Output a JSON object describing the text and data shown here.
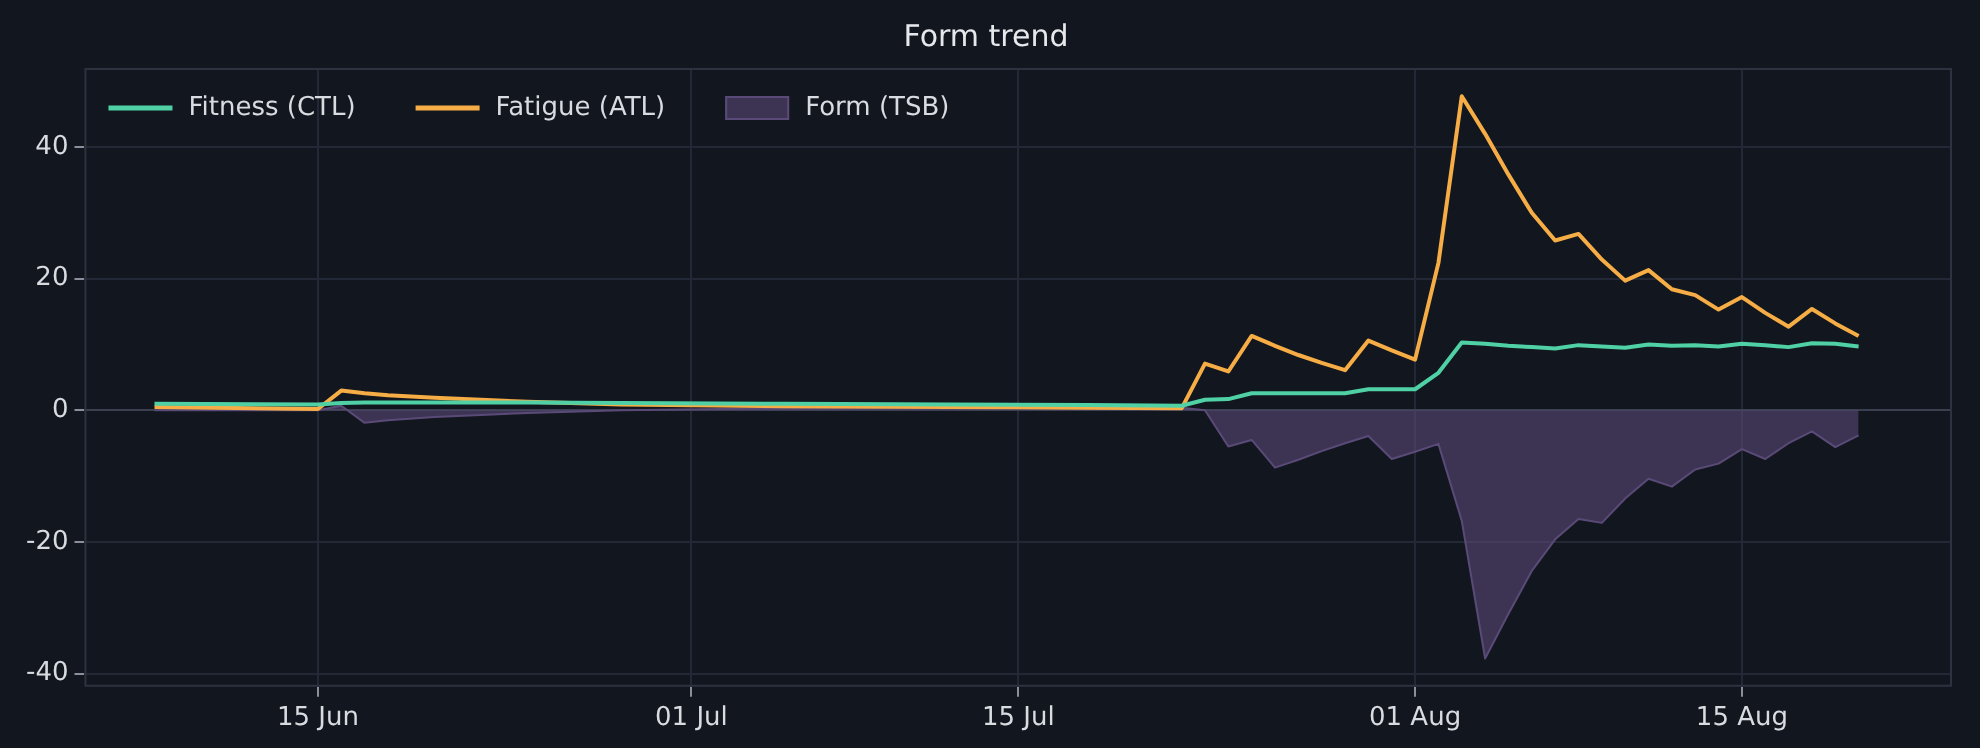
{
  "chart_data": {
    "type": "line",
    "title": "Form trend",
    "x": [
      "--06-08",
      "--06-15",
      "--06-16",
      "--06-17",
      "--06-18",
      "--06-20",
      "--06-24",
      "--06-28",
      "--07-05",
      "--07-12",
      "--07-18",
      "--07-22",
      "--07-23",
      "--07-24",
      "--07-25",
      "--07-26",
      "--07-27",
      "--07-28",
      "--07-29",
      "--07-30",
      "--07-31",
      "--08-01",
      "--08-02",
      "--08-03",
      "--08-04",
      "--08-05",
      "--08-06",
      "--08-07",
      "--08-08",
      "--08-09",
      "--08-10",
      "--08-11",
      "--08-12",
      "--08-13",
      "--08-14",
      "--08-15",
      "--08-16",
      "--08-17",
      "--08-18",
      "--08-19",
      "--08-20"
    ],
    "series": [
      {
        "name": "Fitness (CTL)",
        "type": "line",
        "color": "#4fd1a5",
        "values": [
          1.0,
          0.9,
          1.1,
          1.2,
          1.2,
          1.2,
          1.2,
          1.1,
          1.0,
          0.9,
          0.8,
          0.7,
          1.6,
          1.7,
          2.6,
          2.6,
          2.6,
          2.6,
          2.6,
          3.2,
          3.2,
          3.2,
          5.7,
          10.3,
          10.1,
          9.8,
          9.6,
          9.4,
          9.9,
          9.7,
          9.5,
          10.0,
          9.8,
          9.9,
          9.7,
          10.1,
          9.9,
          9.6,
          10.2,
          10.1,
          9.7
        ]
      },
      {
        "name": "Fatigue (ATL)",
        "type": "line",
        "color": "#f6ad45",
        "values": [
          0.5,
          0.2,
          3.0,
          2.6,
          2.3,
          1.9,
          1.3,
          0.9,
          0.6,
          0.5,
          0.4,
          0.3,
          7.1,
          5.9,
          11.3,
          9.8,
          8.4,
          7.2,
          6.1,
          10.6,
          9.1,
          7.7,
          22.4,
          47.7,
          42.0,
          35.8,
          30.0,
          25.8,
          26.8,
          22.9,
          19.7,
          21.3,
          18.4,
          17.5,
          15.3,
          17.2,
          14.8,
          12.7,
          15.4,
          13.2,
          11.3
        ]
      },
      {
        "name": "Form (TSB)",
        "type": "area",
        "color": "#5a4a78",
        "values": [
          0,
          0,
          0.7,
          -1.9,
          -1.5,
          -1.0,
          -0.4,
          0,
          0.3,
          0.4,
          0.4,
          0.4,
          0,
          -5.5,
          -4.5,
          -8.7,
          -7.5,
          -6.2,
          -5.0,
          -3.9,
          -7.4,
          -6.3,
          -5.1,
          -16.8,
          -37.7,
          -30.9,
          -24.4,
          -19.6,
          -16.5,
          -17.1,
          -13.4,
          -10.4,
          -11.6,
          -9.0,
          -8.1,
          -5.9,
          -7.4,
          -5.0,
          -3.2,
          -5.6,
          -3.8
        ]
      }
    ],
    "xlim": [
      "--06-05",
      "--08-24"
    ],
    "xticks": [
      {
        "value": "--06-15",
        "label": "15 Jun"
      },
      {
        "value": "--07-01",
        "label": "01 Jul"
      },
      {
        "value": "--07-15",
        "label": "15 Jul"
      },
      {
        "value": "--08-01",
        "label": "01 Aug"
      },
      {
        "value": "--08-15",
        "label": "15 Aug"
      }
    ],
    "ylim": [
      -42,
      52
    ],
    "yticks": [
      -40,
      -20,
      0,
      20,
      40
    ],
    "grid": true,
    "legend": "top left",
    "marker": "none",
    "line_style": "solid"
  }
}
